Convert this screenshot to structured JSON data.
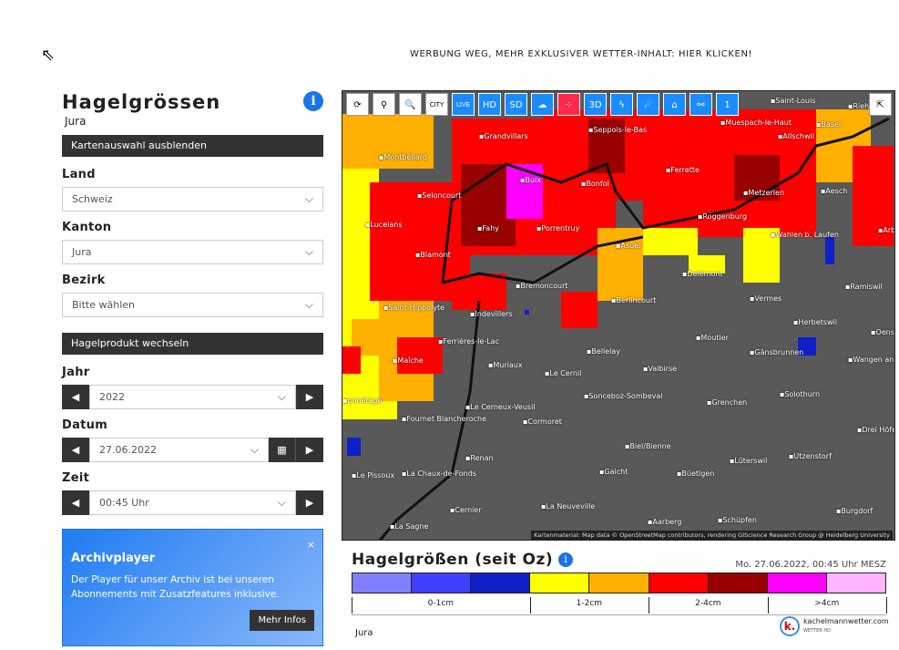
{
  "ad": "WERBUNG WEG, MEHR EXKLUSIVER WETTER-INHALT: HIER KLICKEN!",
  "sidebar": {
    "title": "Hagelgrössen",
    "subtitle": "Jura",
    "info_icon": "info-icon",
    "toggle_label": "Kartenauswahl ausblenden",
    "land_label": "Land",
    "land_value": "Schweiz",
    "kanton_label": "Kanton",
    "kanton_value": "Jura",
    "bezirk_label": "Bezirk",
    "bezirk_value": "Bitte wählen",
    "product_label": "Hagelprodukt wechseln",
    "jahr_label": "Jahr",
    "jahr_value": "2022",
    "datum_label": "Datum",
    "datum_value": "27.06.2022",
    "zeit_label": "Zeit",
    "zeit_value": "00:45 Uhr"
  },
  "promo": {
    "title": "Archivplayer",
    "text": "Der Player für unser Archiv ist bei unseren Abonnements mit Zusatzfeatures inklusive.",
    "button": "Mehr Infos",
    "close": "×"
  },
  "toolbar": [
    {
      "icon": "refresh-icon",
      "glyph": "⟳"
    },
    {
      "icon": "location-pin-icon",
      "glyph": "⚲"
    },
    {
      "icon": "zoom-icon",
      "glyph": "🔍"
    },
    {
      "icon": "city-icon",
      "glyph": "CITY"
    },
    {
      "icon": "live-radar-icon",
      "glyph": "LIVE"
    },
    {
      "icon": "radar-hd-icon",
      "glyph": "HD"
    },
    {
      "icon": "radar-sd-icon",
      "glyph": "SD"
    },
    {
      "icon": "storm-icon",
      "glyph": "☁"
    },
    {
      "icon": "hail-icon",
      "glyph": "⁘"
    },
    {
      "icon": "radar-3d-icon",
      "glyph": "3D"
    },
    {
      "icon": "lightning-icon",
      "glyph": "ϟ"
    },
    {
      "icon": "meteor-icon",
      "glyph": "☄"
    },
    {
      "icon": "flood-icon",
      "glyph": "⌂"
    },
    {
      "icon": "satellite-icon",
      "glyph": "⚯"
    },
    {
      "icon": "radar-1-icon",
      "glyph": "1"
    }
  ],
  "map": {
    "attribution": "Kartenmaterial: Map data © OpenStreetMap contributors, rendering GIScience Research Group @ Heidelberg University",
    "towns": [
      "Saint-Louis",
      "Riehen",
      "Basel",
      "Grandvillars",
      "Seppois-le-Bas",
      "Muespach-le-Haut",
      "Allschwil",
      "Montbéliard",
      "Buix",
      "Bonfol",
      "Ferrette",
      "Seloncourt",
      "Metzerlen",
      "Aesch",
      "Lucelans",
      "Fahy",
      "Porrentruy",
      "Roggenburg",
      "Wahlen b. Laufen",
      "Arbol",
      "Blamont",
      "Asuel",
      "Delémont",
      "Ramiswil",
      "Bremoncourt",
      "Saint-Hippolyte",
      "Indevillers",
      "Berlincourt",
      "Vermes",
      "Herbetswil",
      "Oensin",
      "Ferrières-le-Lac",
      "Bellelay",
      "Moutier",
      "Gänsbrunnen",
      "Maîche",
      "Muriaux",
      "Le Cernil",
      "Valbirse",
      "Wangen an der Aare",
      "onnétage",
      "Fournet Blancheroche",
      "Le Cerneux-Veusil",
      "Sonceboz-Sombeval",
      "Grenchen",
      "Solothurn",
      "Cormoret",
      "Drei Höfe",
      "Biel/Bienne",
      "Utzenstorf",
      "Renan",
      "La Chaux-de-Fonds",
      "Gaicht",
      "Lüterswil",
      "Le Pissoux",
      "Büetigen",
      "Cernier",
      "La Neuveville",
      "Burgdorf",
      "Aarberg",
      "Schüpfen",
      "La Sagne"
    ]
  },
  "legend": {
    "title": "Hagelgrößen (seit Oz)",
    "date": "Mo. 27.06.2022, 00:45 Uhr MESZ",
    "colors": [
      "#8080ff",
      "#4040ff",
      "#1020c8",
      "#ffff00",
      "#ffb000",
      "#ff0000",
      "#990000",
      "#ff00ff",
      "#ffb4ff"
    ],
    "ranges": [
      "0-1cm",
      "1-2cm",
      "2-4cm",
      ">4cm"
    ]
  },
  "footer_region": "Jura",
  "logo": {
    "name": "kachelmannwetter.com",
    "tag": "WETTER HD",
    "letter": "k."
  }
}
